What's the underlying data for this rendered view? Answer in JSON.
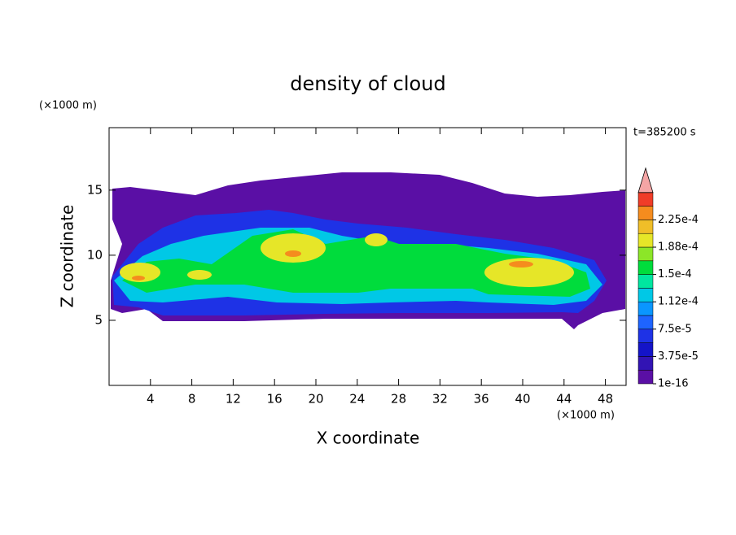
{
  "chart_data": {
    "type": "contour",
    "title": "density of cloud",
    "x_label": "X coordinate",
    "y_label": "Z coordinate",
    "x_unit": "(×1000 m)",
    "y_unit": "(×1000 m)",
    "annotation": "t=385200 s",
    "xlim": [
      0,
      50
    ],
    "ylim": [
      0,
      19.8
    ],
    "xticks": [
      4,
      8,
      12,
      16,
      20,
      24,
      28,
      32,
      36,
      40,
      44,
      48
    ],
    "yticks": [
      5,
      10,
      15
    ],
    "colorbar": {
      "levels": [
        1e-16,
        1.875e-05,
        3.75e-05,
        5.625e-05,
        7.5e-05,
        9.375e-05,
        0.0001125,
        0.00013125,
        0.00015,
        0.00016875,
        0.0001875,
        0.00020625,
        0.000225,
        0.00024375,
        0.0002625
      ],
      "colors": [
        "#5a0fa5",
        "#3214b4",
        "#1414c8",
        "#1e32e6",
        "#1e64ff",
        "#0a96ff",
        "#00c8e6",
        "#00e6a0",
        "#00dc3c",
        "#8ce628",
        "#e6e628",
        "#f0be28",
        "#f58c1e",
        "#f03c28"
      ],
      "extend_color": "#f5a5a5",
      "ticks": [
        {
          "value": 1e-16,
          "label": "1e-16"
        },
        {
          "value": 3.75e-05,
          "label": "3.75e-5"
        },
        {
          "value": 7.5e-05,
          "label": "7.5e-5"
        },
        {
          "value": 0.0001125,
          "label": "1.12e-4"
        },
        {
          "value": 0.00015,
          "label": "1.5e-4"
        },
        {
          "value": 0.0001875,
          "label": "1.88e-4"
        },
        {
          "value": 0.000225,
          "label": "2.25e-4"
        }
      ]
    }
  }
}
